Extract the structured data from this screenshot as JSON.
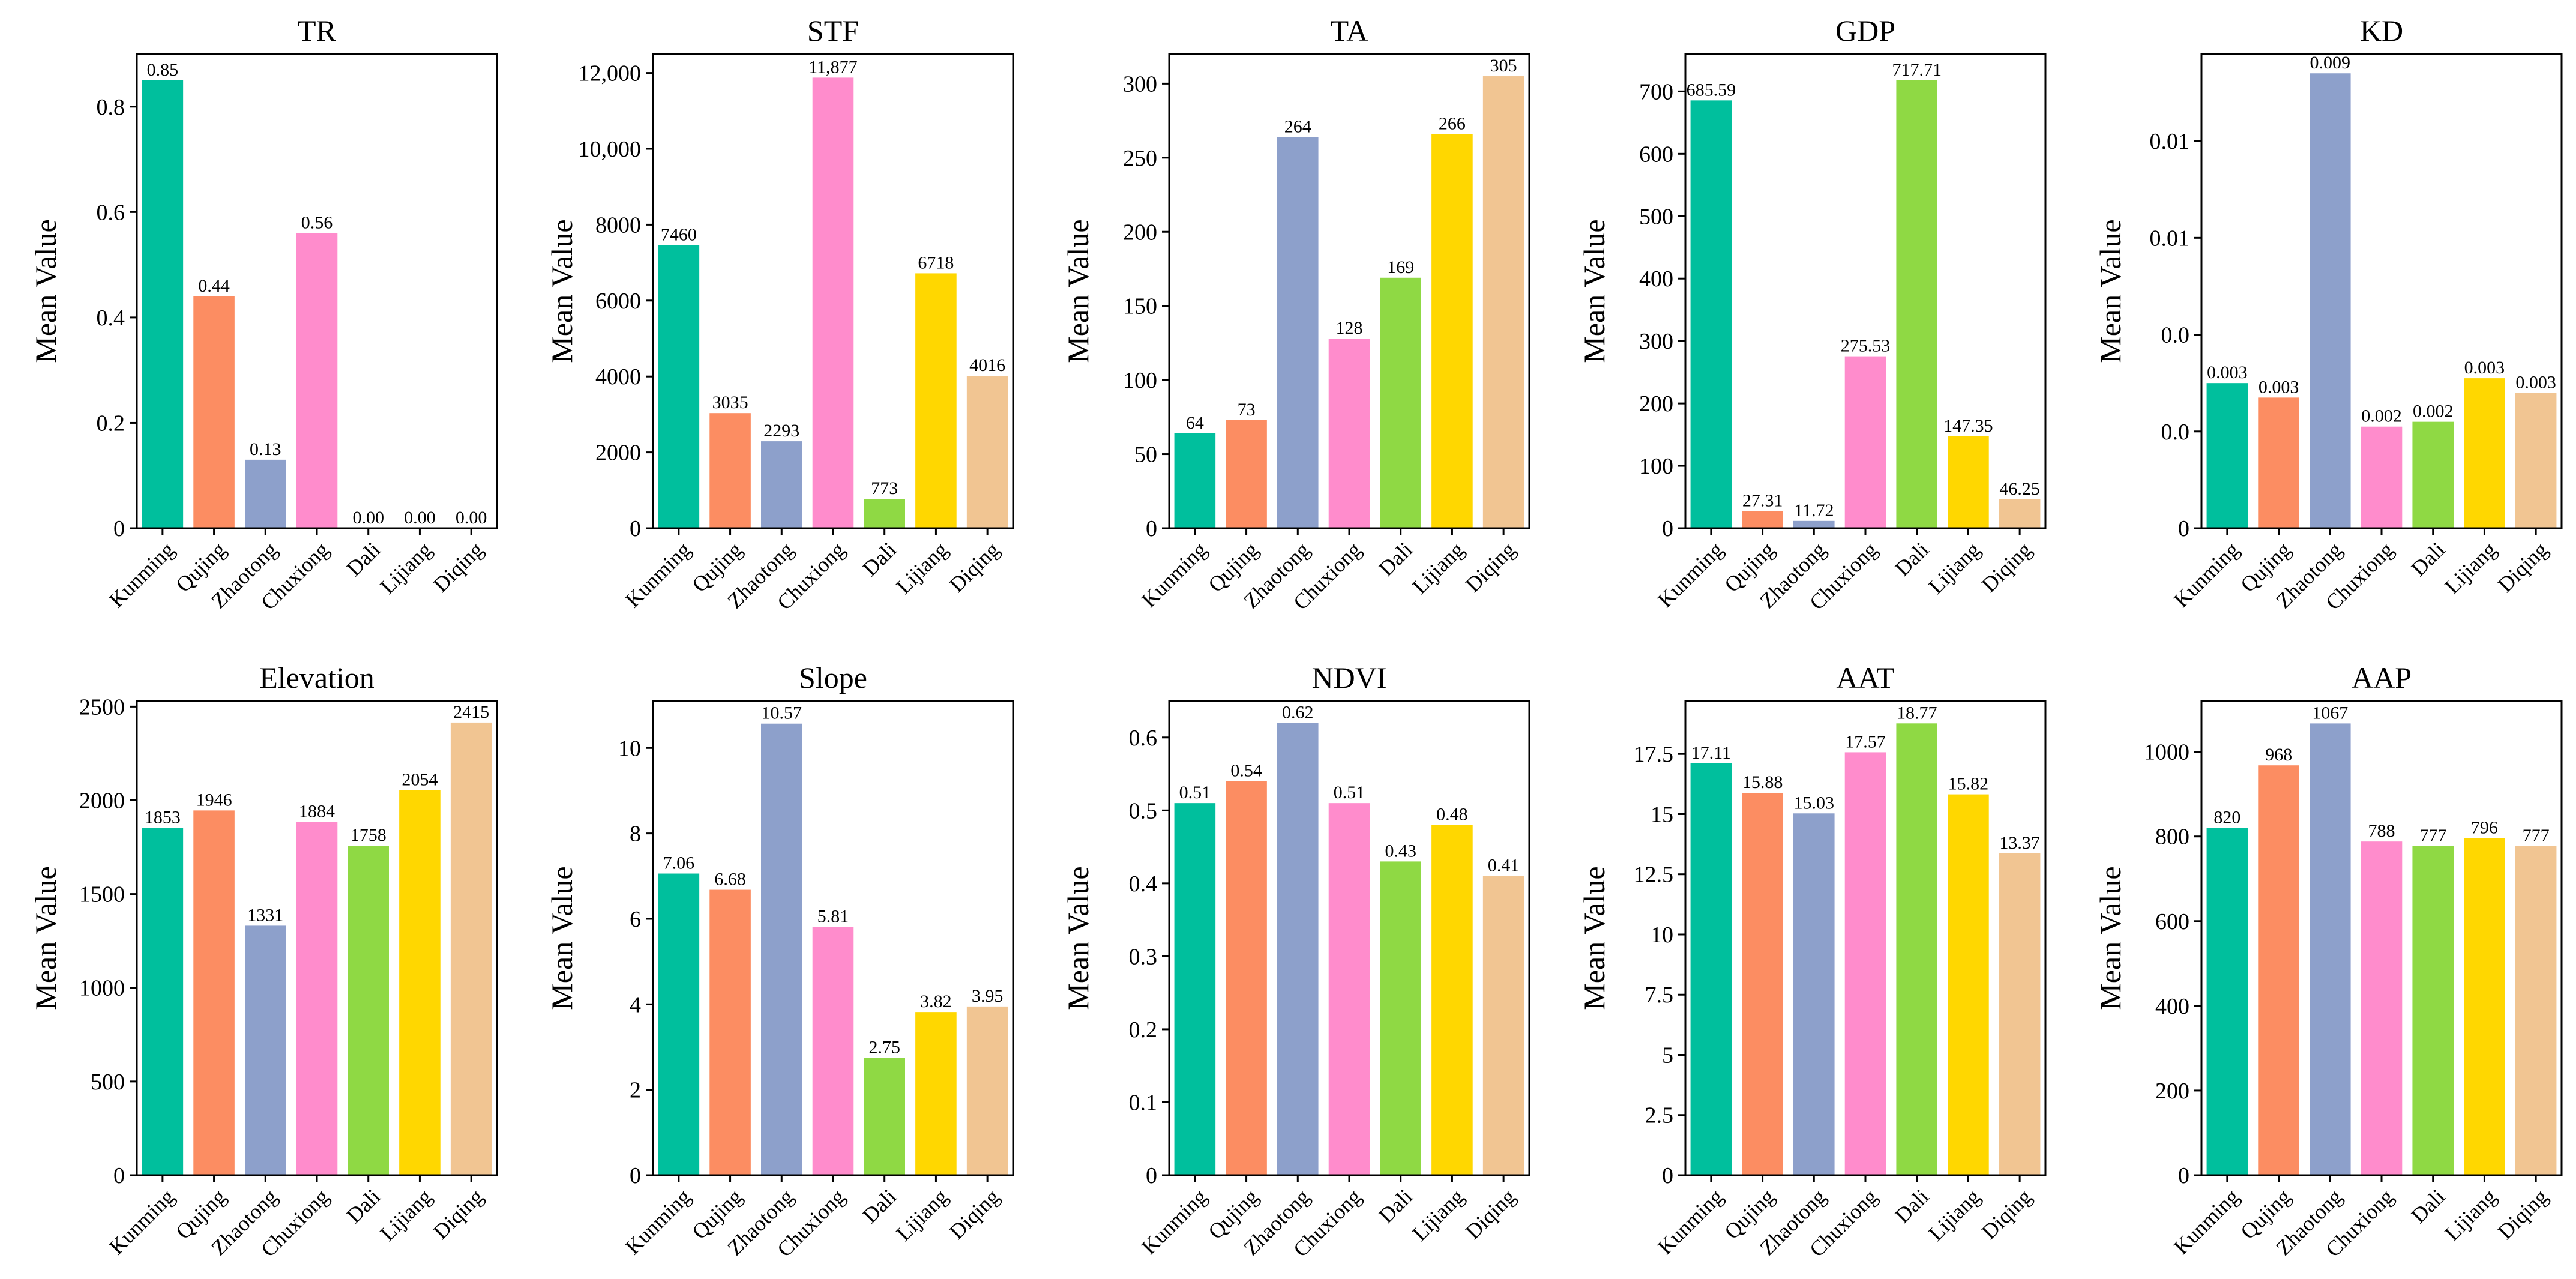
{
  "chart_data": [
    {
      "type": "bar",
      "title": "TR",
      "ylabel": "Mean Value",
      "xlabel": "",
      "categories": [
        "Kunming",
        "Qujing",
        "Zhaotong",
        "Chuxiong",
        "Dali",
        "Lijiang",
        "Diqing"
      ],
      "values": [
        0.85,
        0.44,
        0.13,
        0.56,
        0.0,
        0.0,
        0.0
      ],
      "labels": [
        "0.85",
        "0.44",
        "0.13",
        "0.56",
        "0.00",
        "0.00",
        "0.00"
      ],
      "ylim": [
        0,
        0.9
      ],
      "yticks": [
        0,
        0.2,
        0.4,
        0.6,
        0.8
      ],
      "ytick_labels": [
        "0",
        "0.2",
        "0.4",
        "0.6",
        "0.8"
      ],
      "grid": false
    },
    {
      "type": "bar",
      "title": "STF",
      "ylabel": "Mean Value",
      "xlabel": "",
      "categories": [
        "Kunming",
        "Qujing",
        "Zhaotong",
        "Chuxiong",
        "Dali",
        "Lijiang",
        "Diqing"
      ],
      "values": [
        7460,
        3035,
        2293,
        11877,
        773,
        6718,
        4016
      ],
      "labels": [
        "7460",
        "3035",
        "2293",
        "11,877",
        "773",
        "6718",
        "4016"
      ],
      "ylim": [
        0,
        12500
      ],
      "yticks": [
        0,
        2000,
        4000,
        6000,
        8000,
        10000,
        12000
      ],
      "ytick_labels": [
        "0",
        "2000",
        "4000",
        "6000",
        "8000",
        "10,000",
        "12,000"
      ],
      "grid": false
    },
    {
      "type": "bar",
      "title": "TA",
      "ylabel": "Mean Value",
      "xlabel": "",
      "categories": [
        "Kunming",
        "Qujing",
        "Zhaotong",
        "Chuxiong",
        "Dali",
        "Lijiang",
        "Diqing"
      ],
      "values": [
        64,
        73,
        264,
        128,
        169,
        266,
        305
      ],
      "labels": [
        "64",
        "73",
        "264",
        "128",
        "169",
        "266",
        "305"
      ],
      "ylim": [
        0,
        320
      ],
      "yticks": [
        0,
        50,
        100,
        150,
        200,
        250,
        300
      ],
      "ytick_labels": [
        "0",
        "50",
        "100",
        "150",
        "200",
        "250",
        "300"
      ],
      "grid": false
    },
    {
      "type": "bar",
      "title": "GDP",
      "ylabel": "Mean Value",
      "xlabel": "",
      "categories": [
        "Kunming",
        "Qujing",
        "Zhaotong",
        "Chuxiong",
        "Dali",
        "Lijiang",
        "Diqing"
      ],
      "values": [
        685.59,
        27.31,
        11.72,
        275.53,
        717.71,
        147.35,
        46.25
      ],
      "labels": [
        "685.59",
        "27.31",
        "11.72",
        "275.53",
        "717.71",
        "147.35",
        "46.25"
      ],
      "ylim": [
        0,
        760
      ],
      "yticks": [
        0,
        100,
        200,
        300,
        400,
        500,
        600,
        700
      ],
      "ytick_labels": [
        "0",
        "100",
        "200",
        "300",
        "400",
        "500",
        "600",
        "700"
      ],
      "grid": false
    },
    {
      "type": "bar",
      "title": "KD",
      "ylabel": "Mean Value",
      "xlabel": "",
      "categories": [
        "Kunming",
        "Qujing",
        "Zhaotong",
        "Chuxiong",
        "Dali",
        "Lijiang",
        "Diqing"
      ],
      "values": [
        0.003,
        0.0027,
        0.0094,
        0.0021,
        0.0022,
        0.0031,
        0.0028
      ],
      "labels": [
        "0.003",
        "0.003",
        "0.009",
        "0.002",
        "0.002",
        "0.003",
        "0.003"
      ],
      "ylim": [
        0,
        0.0098
      ],
      "yticks": [
        0,
        0.002,
        0.004,
        0.006,
        0.008
      ],
      "ytick_labels": [
        "0",
        "0.0",
        "0.0",
        "0.01",
        "0.01"
      ],
      "grid": false
    },
    {
      "type": "bar",
      "title": "Elevation",
      "ylabel": "Mean Value",
      "xlabel": "",
      "categories": [
        "Kunming",
        "Qujing",
        "Zhaotong",
        "Chuxiong",
        "Dali",
        "Lijiang",
        "Diqing"
      ],
      "values": [
        1853,
        1946,
        1331,
        1884,
        1758,
        2054,
        2415
      ],
      "labels": [
        "1853",
        "1946",
        "1331",
        "1884",
        "1758",
        "2054",
        "2415"
      ],
      "ylim": [
        0,
        2530
      ],
      "yticks": [
        0,
        500,
        1000,
        1500,
        2000,
        2500
      ],
      "ytick_labels": [
        "0",
        "500",
        "1000",
        "1500",
        "2000",
        "2500"
      ],
      "grid": false
    },
    {
      "type": "bar",
      "title": "Slope",
      "ylabel": "Mean Value",
      "xlabel": "",
      "categories": [
        "Kunming",
        "Qujing",
        "Zhaotong",
        "Chuxiong",
        "Dali",
        "Lijiang",
        "Diqing"
      ],
      "values": [
        7.06,
        6.68,
        10.57,
        5.81,
        2.75,
        3.82,
        3.95
      ],
      "labels": [
        "7.06",
        "6.68",
        "10.57",
        "5.81",
        "2.75",
        "3.82",
        "3.95"
      ],
      "ylim": [
        0,
        11.1
      ],
      "yticks": [
        0,
        2,
        4,
        6,
        8,
        10
      ],
      "ytick_labels": [
        "0",
        "2",
        "4",
        "6",
        "8",
        "10"
      ],
      "grid": false
    },
    {
      "type": "bar",
      "title": "NDVI",
      "ylabel": "Mean Value",
      "xlabel": "",
      "categories": [
        "Kunming",
        "Qujing",
        "Zhaotong",
        "Chuxiong",
        "Dali",
        "Lijiang",
        "Diqing"
      ],
      "values": [
        0.51,
        0.54,
        0.62,
        0.51,
        0.43,
        0.48,
        0.41
      ],
      "labels": [
        "0.51",
        "0.54",
        "0.62",
        "0.51",
        "0.43",
        "0.48",
        "0.41"
      ],
      "ylim": [
        0,
        0.65
      ],
      "yticks": [
        0,
        0.1,
        0.2,
        0.3,
        0.4,
        0.5,
        0.6
      ],
      "ytick_labels": [
        "0",
        "0.1",
        "0.2",
        "0.3",
        "0.4",
        "0.5",
        "0.6"
      ],
      "grid": false
    },
    {
      "type": "bar",
      "title": "AAT",
      "ylabel": "Mean Value",
      "xlabel": "",
      "categories": [
        "Kunming",
        "Qujing",
        "Zhaotong",
        "Chuxiong",
        "Dali",
        "Lijiang",
        "Diqing"
      ],
      "values": [
        17.11,
        15.88,
        15.03,
        17.57,
        18.77,
        15.82,
        13.37
      ],
      "labels": [
        "17.11",
        "15.88",
        "15.03",
        "17.57",
        "18.77",
        "15.82",
        "13.37"
      ],
      "ylim": [
        0,
        19.7
      ],
      "yticks": [
        0,
        2.5,
        5,
        7.5,
        10,
        12.5,
        15,
        17.5
      ],
      "ytick_labels": [
        "0",
        "2.5",
        "5",
        "7.5",
        "10",
        "12.5",
        "15",
        "17.5"
      ],
      "grid": false
    },
    {
      "type": "bar",
      "title": "AAP",
      "ylabel": "Mean Value",
      "xlabel": "",
      "categories": [
        "Kunming",
        "Qujing",
        "Zhaotong",
        "Chuxiong",
        "Dali",
        "Lijiang",
        "Diqing"
      ],
      "values": [
        820,
        968,
        1067,
        788,
        777,
        796,
        777
      ],
      "labels": [
        "820",
        "968",
        "1067",
        "788",
        "777",
        "796",
        "777"
      ],
      "ylim": [
        0,
        1120
      ],
      "yticks": [
        0,
        200,
        400,
        600,
        800,
        1000
      ],
      "ytick_labels": [
        "0",
        "200",
        "400",
        "600",
        "800",
        "1000"
      ],
      "grid": false
    }
  ],
  "colors": {
    "Kunming": "#00bf9d",
    "Qujing": "#fc8d62",
    "Zhaotong": "#8da0cb",
    "Chuxiong": "#ff8ccc",
    "Dali": "#8fd944",
    "Lijiang": "#ffd700",
    "Diqing": "#f1c592"
  }
}
